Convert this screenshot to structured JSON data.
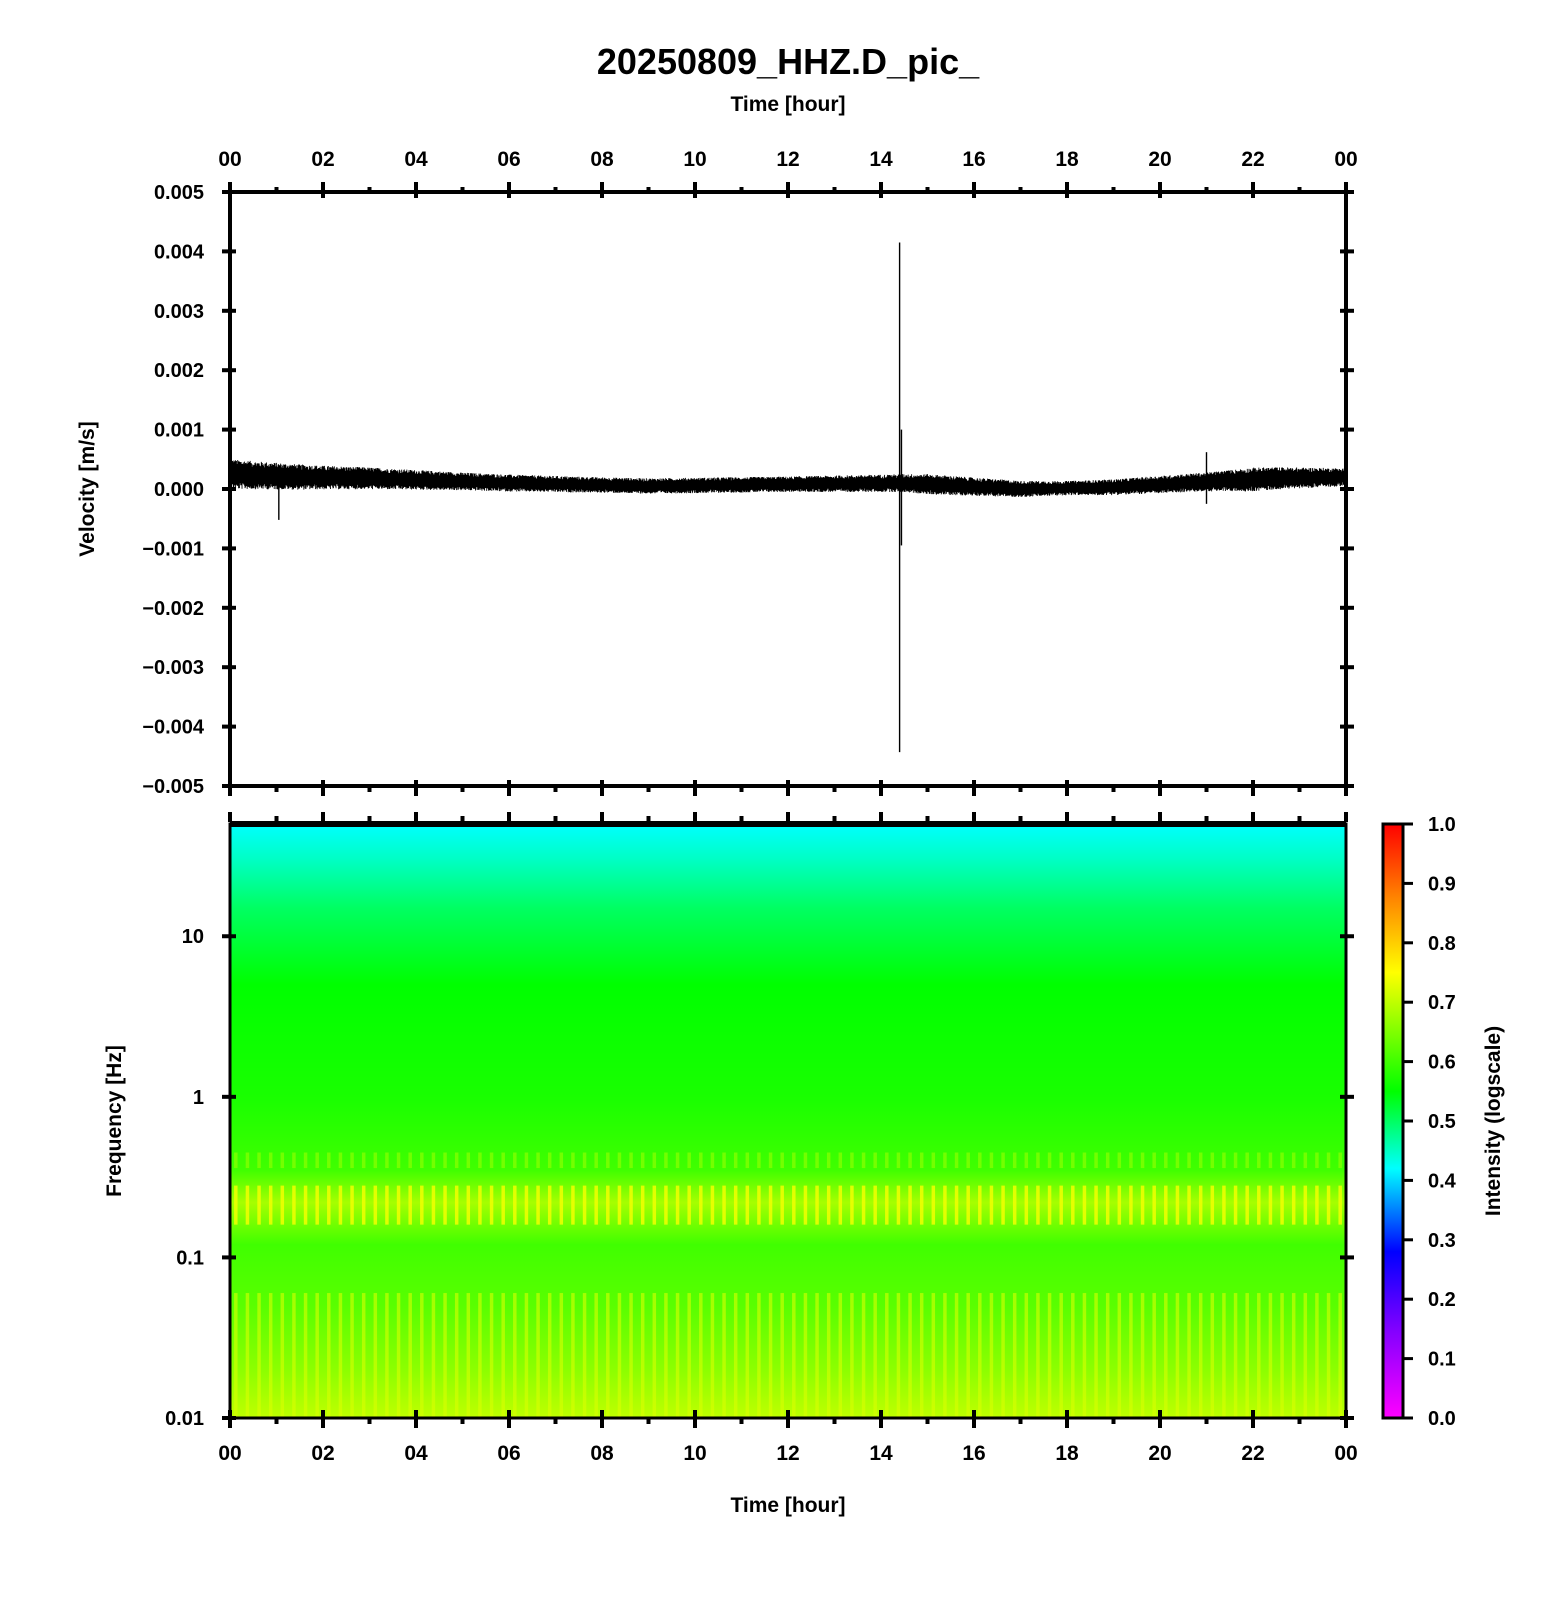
{
  "figure": {
    "title": "20250809_HHZ.D_pic_"
  },
  "chart_data": [
    {
      "type": "line",
      "name": "velocity-waveform",
      "xlabel": "Time [hour]",
      "ylabel": "Velocity [m/s]",
      "x_tick_labels": [
        "00",
        "02",
        "04",
        "06",
        "08",
        "10",
        "12",
        "14",
        "16",
        "18",
        "20",
        "22",
        "00"
      ],
      "x_range_hours": [
        0,
        24
      ],
      "x_tick_hours": [
        0,
        2,
        4,
        6,
        8,
        10,
        12,
        14,
        16,
        18,
        20,
        22,
        24
      ],
      "x_minor_tick_step_hours": 1,
      "y_tick_labels": [
        "0.005",
        "0.004",
        "0.003",
        "0.002",
        "0.001",
        "0.000",
        "−0.001",
        "−0.002",
        "−0.003",
        "−0.004",
        "−0.005"
      ],
      "y_tick_values": [
        0.005,
        0.004,
        0.003,
        0.002,
        0.001,
        0.0,
        -0.001,
        -0.002,
        -0.003,
        -0.004,
        -0.005
      ],
      "ylim": [
        -0.005,
        0.005
      ],
      "grid": false,
      "trace_color": "#000000",
      "baseline_offset": [
        [
          0,
          0.00025
        ],
        [
          1.5,
          0.0002
        ],
        [
          3,
          0.00018
        ],
        [
          6,
          0.0001
        ],
        [
          9,
          5e-05
        ],
        [
          12,
          8e-05
        ],
        [
          14.5,
          0.0001
        ],
        [
          17,
          0.0
        ],
        [
          19,
          3e-05
        ],
        [
          21,
          0.00012
        ],
        [
          22.5,
          0.00018
        ],
        [
          24,
          0.0002
        ]
      ],
      "noise_amplitude": [
        [
          0,
          0.00025
        ],
        [
          2,
          0.0002
        ],
        [
          5,
          0.00015
        ],
        [
          8,
          0.00013
        ],
        [
          12,
          0.00013
        ],
        [
          14.4,
          0.00015
        ],
        [
          15,
          0.00017
        ],
        [
          18,
          0.00012
        ],
        [
          21,
          0.00016
        ],
        [
          22,
          0.0002
        ],
        [
          24,
          0.00015
        ]
      ],
      "spikes": [
        {
          "hour": 1.05,
          "max": 0.0003,
          "min": -0.00052
        },
        {
          "hour": 14.4,
          "max": 0.00415,
          "min": -0.00443
        },
        {
          "hour": 14.44,
          "max": 0.001,
          "min": -0.00095
        },
        {
          "hour": 21.0,
          "max": 0.00062,
          "min": -0.00025
        }
      ]
    },
    {
      "type": "heatmap",
      "name": "spectrogram",
      "xlabel": "Time [hour]",
      "ylabel": "Frequency [Hz]",
      "x_tick_labels": [
        "00",
        "02",
        "04",
        "06",
        "08",
        "10",
        "12",
        "14",
        "16",
        "18",
        "20",
        "22",
        "00"
      ],
      "x_range_hours": [
        0,
        24
      ],
      "y_scale": "log",
      "y_tick_labels": [
        "10",
        "1",
        "0.1",
        "0.01"
      ],
      "y_tick_values": [
        10,
        1,
        0.1,
        0.01
      ],
      "ylim": [
        0.01,
        50
      ],
      "colorbar": {
        "label": "Intensity (logscale)",
        "tick_labels": [
          "1.0",
          "0.9",
          "0.8",
          "0.7",
          "0.6",
          "0.5",
          "0.4",
          "0.3",
          "0.2",
          "0.1",
          "0.0"
        ],
        "tick_values": [
          1.0,
          0.9,
          0.8,
          0.7,
          0.6,
          0.5,
          0.4,
          0.3,
          0.2,
          0.1,
          0.0
        ],
        "range": [
          0,
          1
        ],
        "colormap": "rainbow magenta-blue-cyan-green-yellow-red",
        "stops": [
          {
            "v": 0.0,
            "color": "#ff00ff"
          },
          {
            "v": 0.15,
            "color": "#8000ff"
          },
          {
            "v": 0.28,
            "color": "#0000ff"
          },
          {
            "v": 0.42,
            "color": "#00ffff"
          },
          {
            "v": 0.55,
            "color": "#00ff00"
          },
          {
            "v": 0.75,
            "color": "#ffff00"
          },
          {
            "v": 0.88,
            "color": "#ff8000"
          },
          {
            "v": 1.0,
            "color": "#ff0000"
          }
        ]
      },
      "intensity_by_frequency": [
        {
          "hz": 50,
          "value": 0.42
        },
        {
          "hz": 30,
          "value": 0.45
        },
        {
          "hz": 15,
          "value": 0.5
        },
        {
          "hz": 5,
          "value": 0.55
        },
        {
          "hz": 1,
          "value": 0.57
        },
        {
          "hz": 0.35,
          "value": 0.6
        },
        {
          "hz": 0.22,
          "value": 0.68
        },
        {
          "hz": 0.12,
          "value": 0.6
        },
        {
          "hz": 0.05,
          "value": 0.62
        },
        {
          "hz": 0.02,
          "value": 0.66
        },
        {
          "hz": 0.01,
          "value": 0.7
        }
      ],
      "stripe_count": 96
    }
  ]
}
